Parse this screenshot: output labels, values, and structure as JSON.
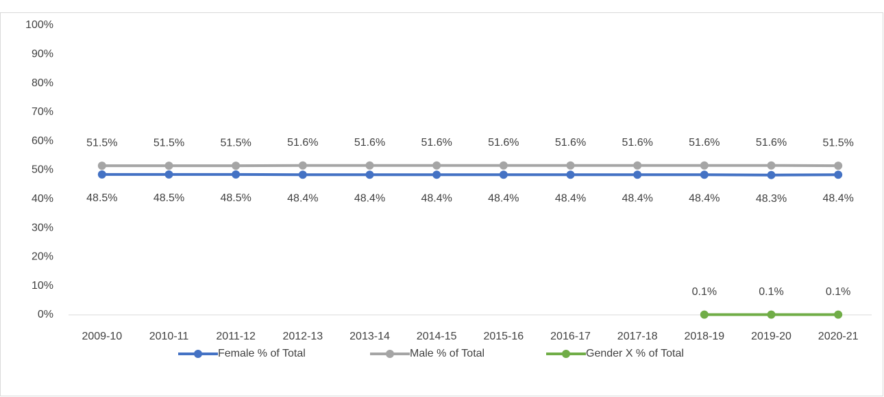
{
  "chart_data": {
    "type": "line",
    "categories": [
      "2009-10",
      "2010-11",
      "2011-12",
      "2012-13",
      "2013-14",
      "2014-15",
      "2015-16",
      "2016-17",
      "2017-18",
      "2018-19",
      "2019-20",
      "2020-21"
    ],
    "series": [
      {
        "name": "Female % of Total",
        "color": "#4472c4",
        "values": [
          48.5,
          48.5,
          48.5,
          48.4,
          48.4,
          48.4,
          48.4,
          48.4,
          48.4,
          48.4,
          48.3,
          48.4
        ],
        "value_labels": [
          "48.5%",
          "48.5%",
          "48.5%",
          "48.4%",
          "48.4%",
          "48.4%",
          "48.4%",
          "48.4%",
          "48.4%",
          "48.4%",
          "48.3%",
          "48.4%"
        ]
      },
      {
        "name": "Male % of Total",
        "color": "#a5a5a5",
        "values": [
          51.5,
          51.5,
          51.5,
          51.6,
          51.6,
          51.6,
          51.6,
          51.6,
          51.6,
          51.6,
          51.6,
          51.5
        ],
        "value_labels": [
          "51.5%",
          "51.5%",
          "51.5%",
          "51.6%",
          "51.6%",
          "51.6%",
          "51.6%",
          "51.6%",
          "51.6%",
          "51.6%",
          "51.6%",
          "51.5%"
        ]
      },
      {
        "name": "Gender X % of Total",
        "color": "#70ad47",
        "values": [
          null,
          null,
          null,
          null,
          null,
          null,
          null,
          null,
          null,
          0.1,
          0.1,
          0.1
        ],
        "value_labels": [
          null,
          null,
          null,
          null,
          null,
          null,
          null,
          null,
          null,
          "0.1%",
          "0.1%",
          "0.1%"
        ]
      }
    ],
    "ylim": [
      0,
      100
    ],
    "yticks": [
      {
        "value": 0,
        "label": "0%"
      },
      {
        "value": 10,
        "label": "10%"
      },
      {
        "value": 20,
        "label": "20%"
      },
      {
        "value": 30,
        "label": "30%"
      },
      {
        "value": 40,
        "label": "40%"
      },
      {
        "value": 50,
        "label": "50%"
      },
      {
        "value": 60,
        "label": "60%"
      },
      {
        "value": 70,
        "label": "70%"
      },
      {
        "value": 80,
        "label": "80%"
      },
      {
        "value": 90,
        "label": "90%"
      },
      {
        "value": 100,
        "label": "100%"
      }
    ],
    "grid": false,
    "legend": "bottom"
  }
}
